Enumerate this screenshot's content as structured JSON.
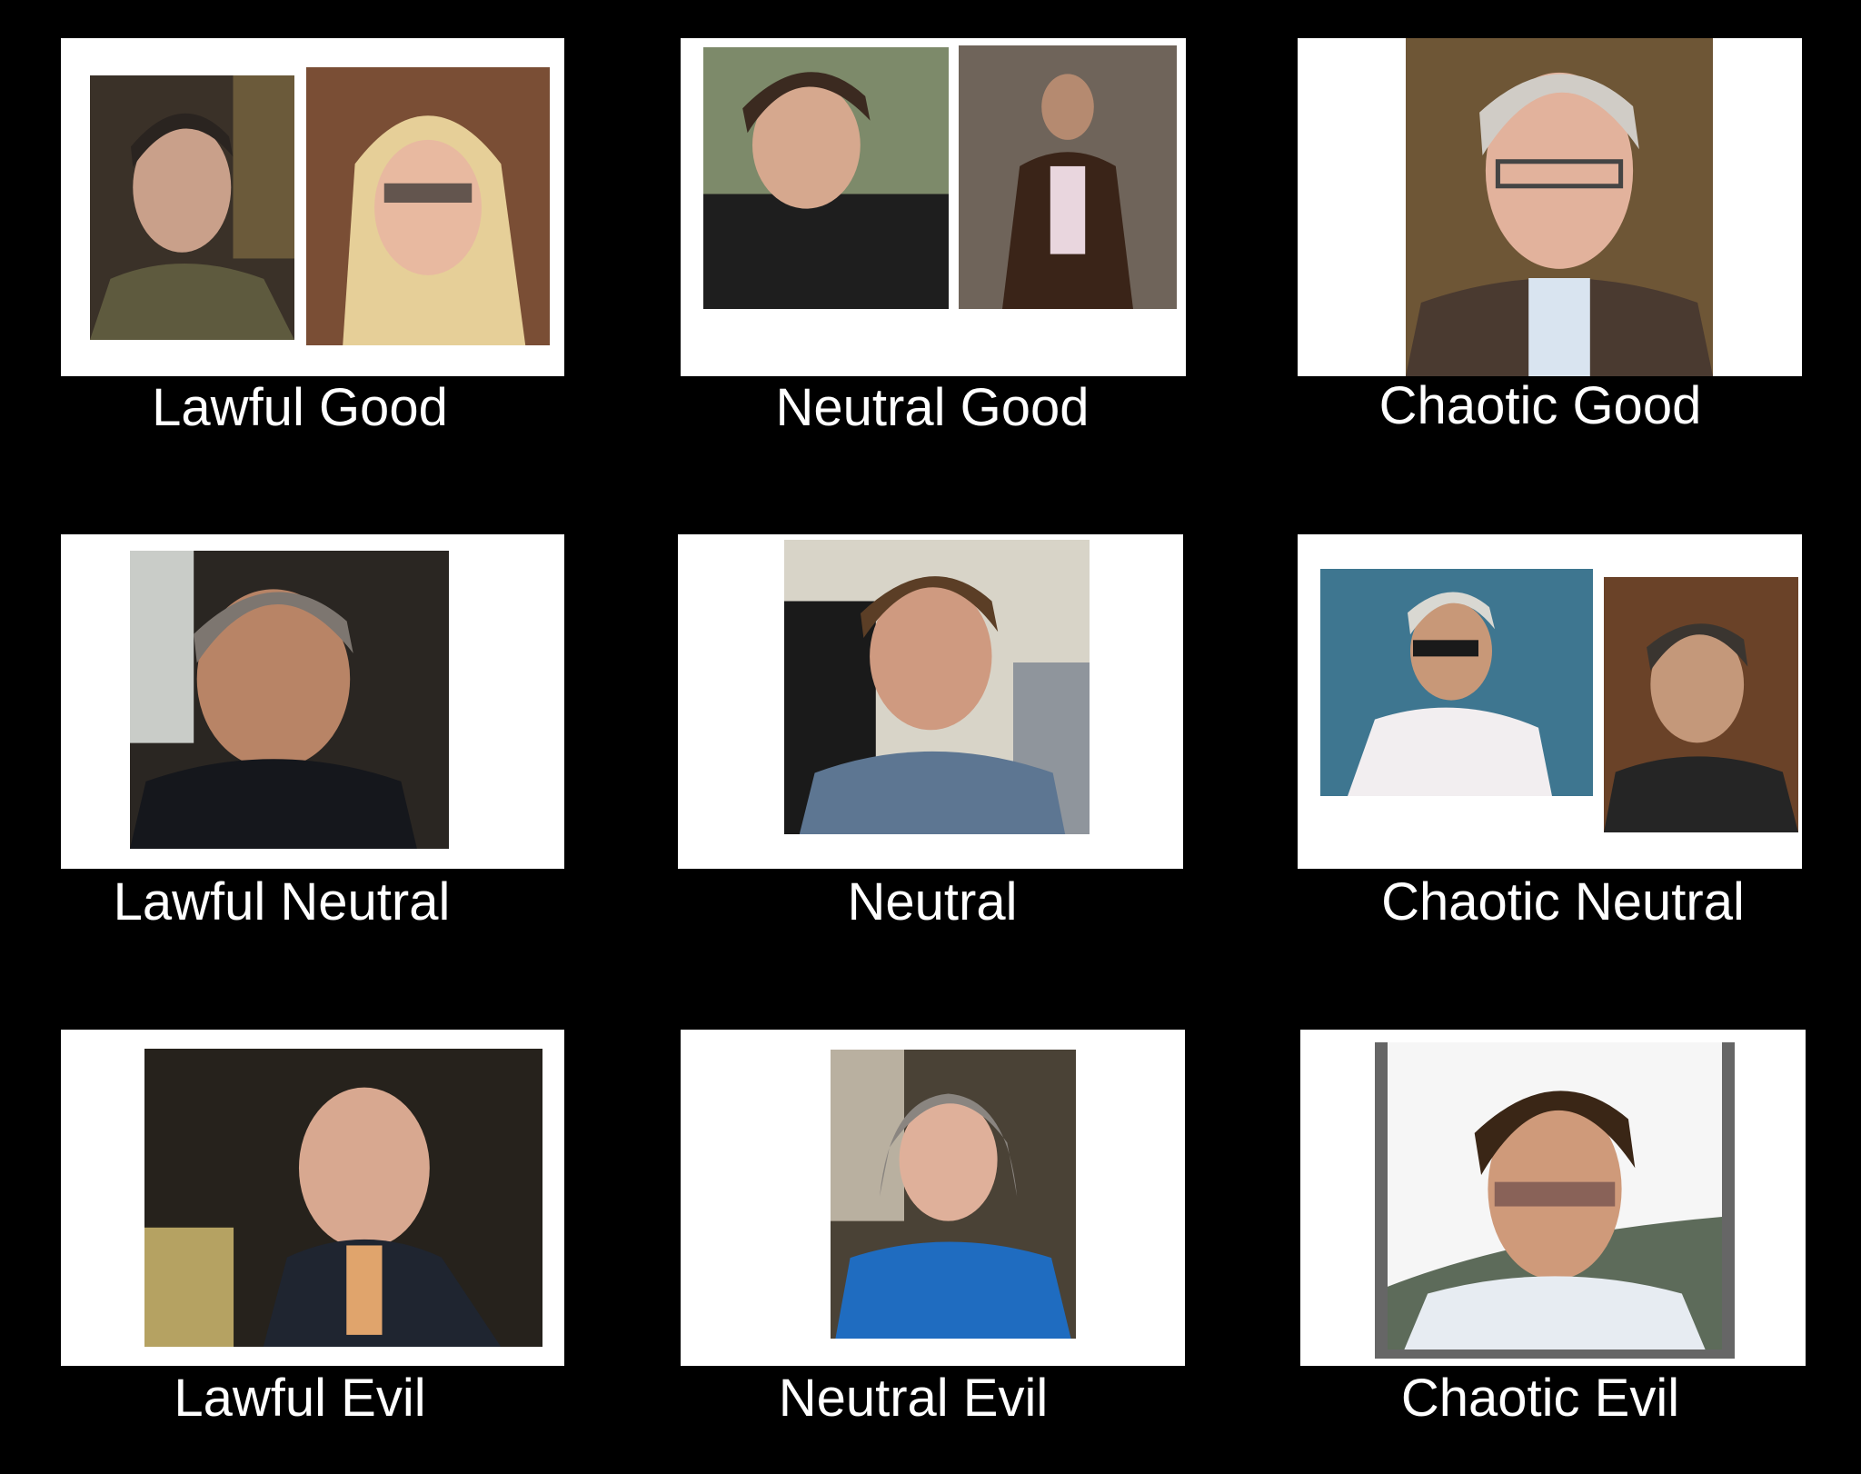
{
  "chart_title": "",
  "cells": [
    {
      "label": "Lawful Good"
    },
    {
      "label": "Neutral Good"
    },
    {
      "label": "Chaotic Good"
    },
    {
      "label": "Lawful Neutral"
    },
    {
      "label": "Neutral"
    },
    {
      "label": "Chaotic Neutral"
    },
    {
      "label": "Lawful Evil"
    },
    {
      "label": "Neutral Evil"
    },
    {
      "label": "Chaotic Evil"
    }
  ],
  "colors": {
    "background": "#000000",
    "panel": "#ffffff",
    "label_text": "#ffffff"
  }
}
